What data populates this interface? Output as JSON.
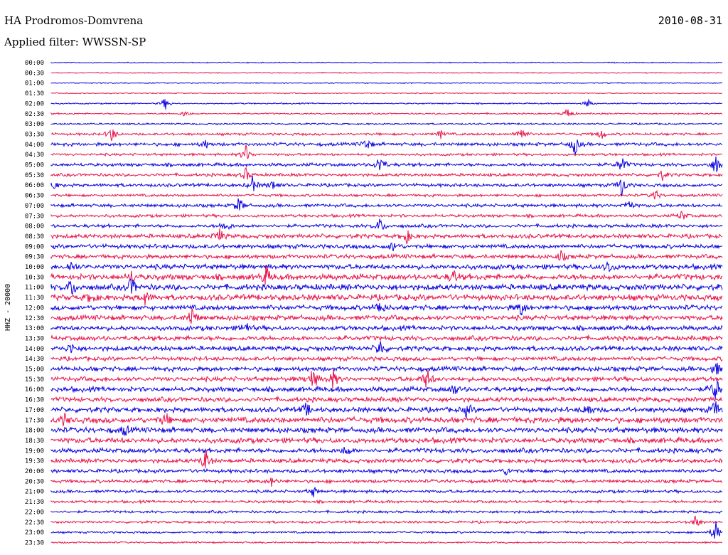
{
  "header": {
    "station": "HA Prodromos-Domvrena",
    "filter": "Applied filter: WWSSN-SP",
    "date": "2010-08-31",
    "channel": "HHZ - 20000"
  },
  "colors": {
    "even": "#0a00e0",
    "odd": "#e8124a"
  },
  "chart_data": {
    "type": "line",
    "title": "HA Prodromos-Domvrena",
    "subtitle": "Applied filter: WWSSN-SP",
    "ylabel": "HHZ - 20000",
    "rows": [
      "00:00",
      "00:30",
      "01:00",
      "01:30",
      "02:00",
      "02:30",
      "03:00",
      "03:30",
      "04:00",
      "04:30",
      "05:00",
      "05:30",
      "06:00",
      "06:30",
      "07:00",
      "07:30",
      "08:00",
      "08:30",
      "09:00",
      "09:30",
      "10:00",
      "10:30",
      "11:00",
      "11:30",
      "12:00",
      "12:30",
      "13:00",
      "13:30",
      "14:00",
      "14:30",
      "15:00",
      "15:30",
      "16:00",
      "16:30",
      "17:00",
      "17:30",
      "18:00",
      "18:30",
      "19:00",
      "19:30",
      "20:00",
      "20:30",
      "21:00",
      "21:30",
      "22:00",
      "22:30",
      "23:00",
      "23:30"
    ],
    "row_noise": [
      0.6,
      0.6,
      0.6,
      0.6,
      0.8,
      0.9,
      1.0,
      1.5,
      2.0,
      1.5,
      2.0,
      1.8,
      2.0,
      1.6,
      2.0,
      1.8,
      2.0,
      2.5,
      2.5,
      2.5,
      3.0,
      3.5,
      3.5,
      3.5,
      3.0,
      3.0,
      2.8,
      2.8,
      2.8,
      2.5,
      2.8,
      2.8,
      3.0,
      2.8,
      3.0,
      3.5,
      3.2,
      3.2,
      2.8,
      2.5,
      2.2,
      2.0,
      1.8,
      1.6,
      1.5,
      1.4,
      1.2,
      1.0
    ],
    "events": [
      {
        "row": 4,
        "t": 0.17,
        "amp": 9
      },
      {
        "row": 4,
        "t": 0.8,
        "amp": 6
      },
      {
        "row": 5,
        "t": 0.77,
        "amp": 10
      },
      {
        "row": 5,
        "t": 0.2,
        "amp": 6
      },
      {
        "row": 7,
        "t": 0.09,
        "amp": 12
      },
      {
        "row": 7,
        "t": 0.7,
        "amp": 14
      },
      {
        "row": 7,
        "t": 0.82,
        "amp": 8
      },
      {
        "row": 7,
        "t": 0.58,
        "amp": 6
      },
      {
        "row": 8,
        "t": 0.47,
        "amp": 10
      },
      {
        "row": 8,
        "t": 0.78,
        "amp": 16
      },
      {
        "row": 8,
        "t": 0.23,
        "amp": 6
      },
      {
        "row": 9,
        "t": 0.29,
        "amp": 14
      },
      {
        "row": 10,
        "t": 0.49,
        "amp": 16
      },
      {
        "row": 10,
        "t": 0.85,
        "amp": 14
      },
      {
        "row": 10,
        "t": 0.99,
        "amp": 14
      },
      {
        "row": 11,
        "t": 0.29,
        "amp": 10
      },
      {
        "row": 11,
        "t": 0.91,
        "amp": 8
      },
      {
        "row": 12,
        "t": 0.0,
        "amp": 14
      },
      {
        "row": 12,
        "t": 0.3,
        "amp": 12
      },
      {
        "row": 12,
        "t": 0.85,
        "amp": 16
      },
      {
        "row": 12,
        "t": 0.33,
        "amp": 8
      },
      {
        "row": 13,
        "t": 0.9,
        "amp": 8
      },
      {
        "row": 14,
        "t": 0.28,
        "amp": 12
      },
      {
        "row": 14,
        "t": 0.86,
        "amp": 10
      },
      {
        "row": 15,
        "t": 0.94,
        "amp": 8
      },
      {
        "row": 16,
        "t": 0.49,
        "amp": 12
      },
      {
        "row": 16,
        "t": 0.26,
        "amp": 10
      },
      {
        "row": 17,
        "t": 0.25,
        "amp": 12
      },
      {
        "row": 17,
        "t": 0.53,
        "amp": 10
      },
      {
        "row": 18,
        "t": 0.51,
        "amp": 8
      },
      {
        "row": 19,
        "t": 0.76,
        "amp": 8
      },
      {
        "row": 20,
        "t": 0.03,
        "amp": 8
      },
      {
        "row": 20,
        "t": 0.83,
        "amp": 10
      },
      {
        "row": 21,
        "t": 0.32,
        "amp": 16
      },
      {
        "row": 21,
        "t": 0.6,
        "amp": 10
      },
      {
        "row": 21,
        "t": 0.12,
        "amp": 8
      },
      {
        "row": 22,
        "t": 0.03,
        "amp": 14
      },
      {
        "row": 22,
        "t": 0.12,
        "amp": 14
      },
      {
        "row": 23,
        "t": 0.06,
        "amp": 10
      },
      {
        "row": 23,
        "t": 0.14,
        "amp": 10
      },
      {
        "row": 24,
        "t": 0.49,
        "amp": 12
      },
      {
        "row": 24,
        "t": 0.7,
        "amp": 12
      },
      {
        "row": 25,
        "t": 0.21,
        "amp": 16
      },
      {
        "row": 26,
        "t": 0.29,
        "amp": 10
      },
      {
        "row": 28,
        "t": 0.49,
        "amp": 14
      },
      {
        "row": 28,
        "t": 0.03,
        "amp": 8
      },
      {
        "row": 30,
        "t": 0.99,
        "amp": 12
      },
      {
        "row": 31,
        "t": 0.39,
        "amp": 18
      },
      {
        "row": 31,
        "t": 0.42,
        "amp": 14
      },
      {
        "row": 31,
        "t": 0.56,
        "amp": 16
      },
      {
        "row": 32,
        "t": 0.99,
        "amp": 20
      },
      {
        "row": 32,
        "t": 0.6,
        "amp": 8
      },
      {
        "row": 34,
        "t": 0.38,
        "amp": 10
      },
      {
        "row": 34,
        "t": 0.62,
        "amp": 10
      },
      {
        "row": 34,
        "t": 0.99,
        "amp": 14
      },
      {
        "row": 34,
        "t": 0.8,
        "amp": 10
      },
      {
        "row": 35,
        "t": 0.17,
        "amp": 10
      },
      {
        "row": 35,
        "t": 0.02,
        "amp": 8
      },
      {
        "row": 36,
        "t": 0.11,
        "amp": 8
      },
      {
        "row": 38,
        "t": 0.44,
        "amp": 8
      },
      {
        "row": 39,
        "t": 0.23,
        "amp": 18
      },
      {
        "row": 40,
        "t": 0.68,
        "amp": 6
      },
      {
        "row": 41,
        "t": 0.33,
        "amp": 8
      },
      {
        "row": 42,
        "t": 0.39,
        "amp": 8
      },
      {
        "row": 45,
        "t": 0.96,
        "amp": 10
      },
      {
        "row": 46,
        "t": 0.99,
        "amp": 18
      }
    ]
  }
}
